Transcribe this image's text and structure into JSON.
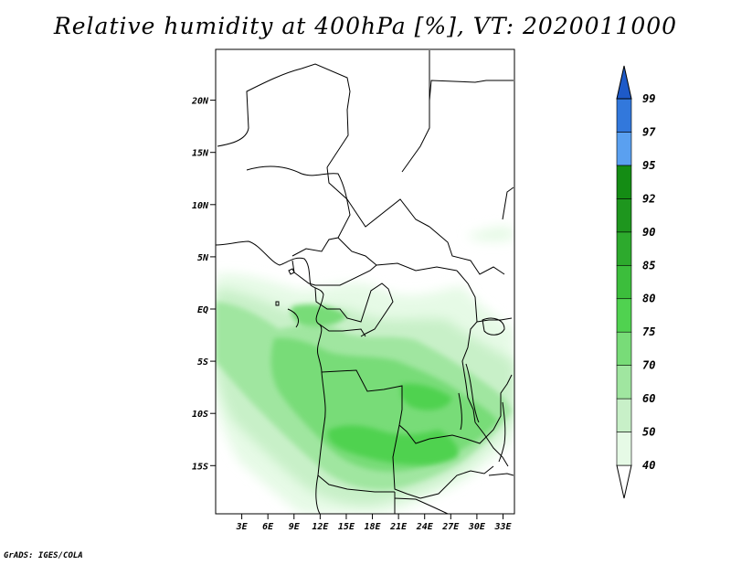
{
  "title": "Relative humidity at 400hPa [%], VT: 2020011000",
  "credit": "GrADS: IGES/COLA",
  "map": {
    "lat_labels": [
      {
        "label": "20N",
        "lat": 20
      },
      {
        "label": "15N",
        "lat": 15
      },
      {
        "label": "10N",
        "lat": 10
      },
      {
        "label": "5N",
        "lat": 5
      },
      {
        "label": "EQ",
        "lat": 0
      },
      {
        "label": "5S",
        "lat": -5
      },
      {
        "label": "10S",
        "lat": -10
      },
      {
        "label": "15S",
        "lat": -15
      }
    ],
    "lon_labels": [
      {
        "label": "3E",
        "lon": 3
      },
      {
        "label": "6E",
        "lon": 6
      },
      {
        "label": "9E",
        "lon": 9
      },
      {
        "label": "12E",
        "lon": 12
      },
      {
        "label": "15E",
        "lon": 15
      },
      {
        "label": "18E",
        "lon": 18
      },
      {
        "label": "21E",
        "lon": 21
      },
      {
        "label": "24E",
        "lon": 24
      },
      {
        "label": "27E",
        "lon": 27
      },
      {
        "label": "30E",
        "lon": 30
      },
      {
        "label": "33E",
        "lon": 33
      }
    ]
  },
  "colorbar": {
    "levels": [
      "40",
      "50",
      "60",
      "70",
      "75",
      "80",
      "85",
      "90",
      "92",
      "95",
      "97",
      "99"
    ],
    "colors": [
      "#ffffff",
      "#e6fae6",
      "#c8f0c8",
      "#a0e6a0",
      "#78dc78",
      "#50d250",
      "#3cbe3c",
      "#2daa2d",
      "#1e961e",
      "#148c14",
      "#5aa0f0",
      "#3278dc",
      "#1e5ac8"
    ]
  },
  "humidity_colors": {
    "c40": "#e6fae6",
    "c50": "#c8f0c8",
    "c60": "#a0e6a0",
    "c70": "#78dc78",
    "c75": "#50d250"
  }
}
